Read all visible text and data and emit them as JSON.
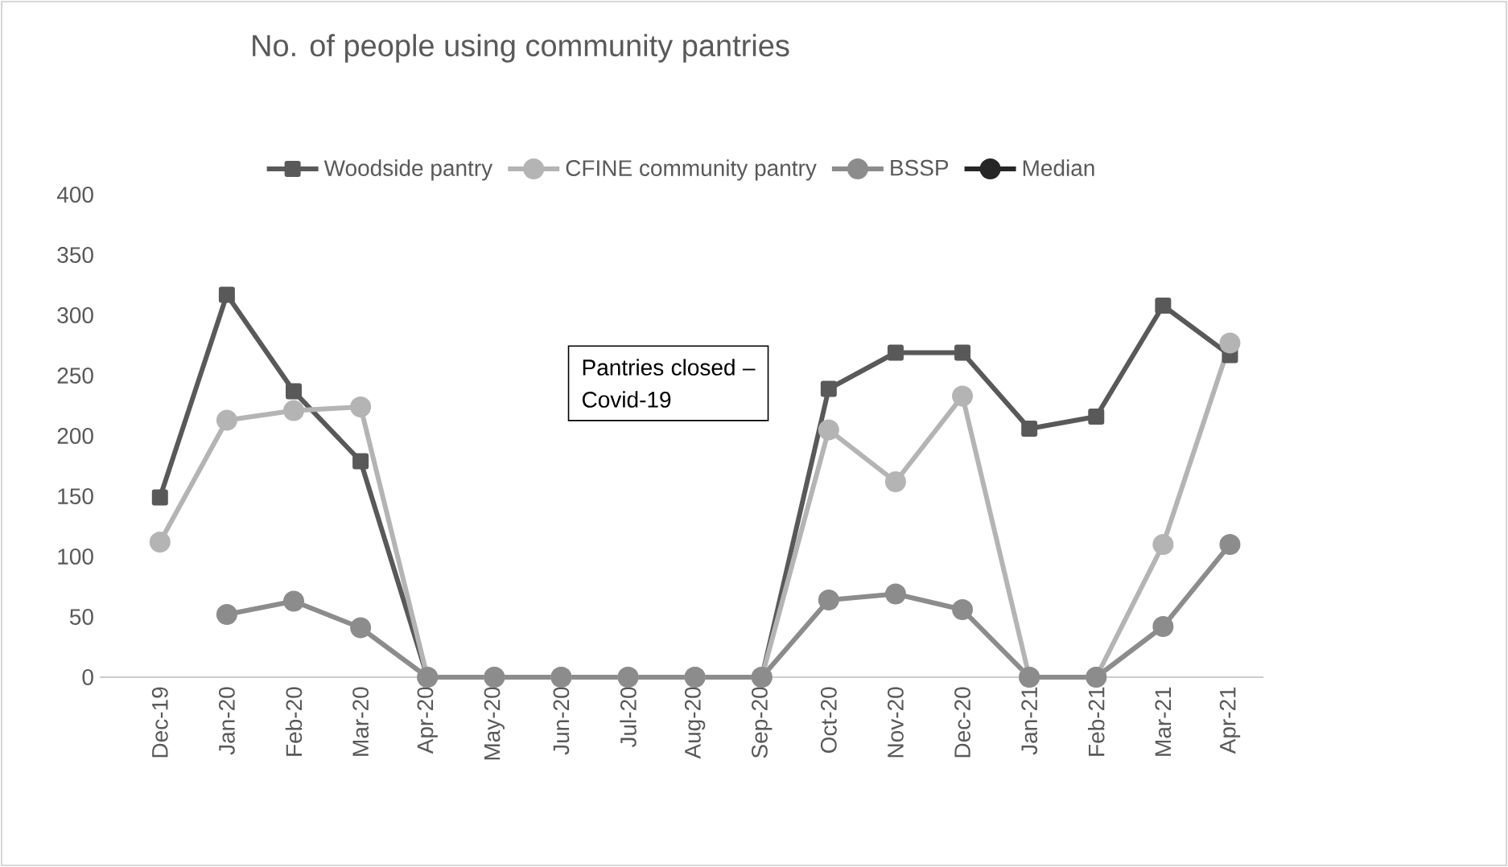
{
  "chart_data": {
    "type": "line",
    "title": "No. of people using community pantries",
    "categories": [
      "Dec-19",
      "Jan-20",
      "Feb-20",
      "Mar-20",
      "Apr-20",
      "May-20",
      "Jun-20",
      "Jul-20",
      "Aug-20",
      "Sep-20",
      "Oct-20",
      "Nov-20",
      "Dec-20",
      "Jan-21",
      "Feb-21",
      "Mar-21",
      "Apr-21"
    ],
    "series": [
      {
        "name": "Woodside pantry",
        "color": "#595959",
        "marker": "square",
        "values": [
          149,
          317,
          237,
          179,
          0,
          0,
          0,
          0,
          0,
          0,
          239,
          269,
          269,
          206,
          216,
          308,
          267
        ]
      },
      {
        "name": "CFINE community pantry",
        "color": "#b4b4b4",
        "marker": "circle",
        "values": [
          112,
          213,
          221,
          224,
          0,
          0,
          0,
          0,
          0,
          0,
          205,
          162,
          233,
          0,
          0,
          110,
          277
        ]
      },
      {
        "name": "BSSP",
        "color": "#8c8c8c",
        "marker": "circle",
        "values": [
          null,
          52,
          63,
          41,
          0,
          0,
          0,
          0,
          0,
          0,
          64,
          69,
          56,
          0,
          0,
          42,
          110
        ]
      },
      {
        "name": "Median",
        "color": "#262626",
        "marker": "circle",
        "values": [
          null,
          null,
          null,
          null,
          null,
          null,
          null,
          null,
          null,
          null,
          null,
          null,
          null,
          null,
          null,
          null,
          null
        ]
      }
    ],
    "ylim": [
      0,
      400
    ],
    "yticks": [
      0,
      50,
      100,
      150,
      200,
      250,
      300,
      350,
      400
    ],
    "grid": false,
    "legend": "top",
    "line_style": "solid",
    "annotations": [
      "Pantries closed – Covid-19"
    ]
  }
}
